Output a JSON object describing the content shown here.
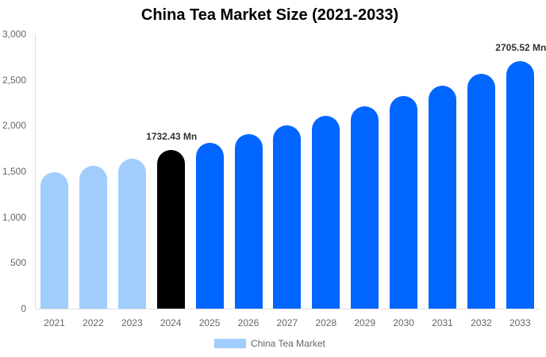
{
  "chart_data": {
    "type": "bar",
    "title": "China Tea Market Size (2021-2033)",
    "xlabel": "",
    "ylabel": "",
    "ylim": [
      0,
      3000
    ],
    "yticks": [
      "0",
      "500",
      "1,000",
      "1,500",
      "2,000",
      "2,500",
      "3,000"
    ],
    "grid": false,
    "legend_position": "bottom",
    "categories": [
      "2021",
      "2022",
      "2023",
      "2024",
      "2025",
      "2026",
      "2027",
      "2028",
      "2029",
      "2030",
      "2031",
      "2032",
      "2033"
    ],
    "series": [
      {
        "name": "China Tea Market",
        "values": [
          1490,
          1560,
          1640,
          1732.43,
          1815,
          1905,
          2000,
          2105,
          2210,
          2320,
          2440,
          2565,
          2705.52
        ]
      }
    ],
    "bar_colors": [
      "#a0cdfc",
      "#a0cdfc",
      "#a0cdfc",
      "#000000",
      "#0066ff",
      "#0066ff",
      "#0066ff",
      "#0066ff",
      "#0066ff",
      "#0066ff",
      "#0066ff",
      "#0066ff",
      "#0066ff"
    ],
    "annotations": [
      {
        "category": "2024",
        "text": "1732.43 Mn"
      },
      {
        "category": "2033",
        "text": "2705.52 Mn"
      }
    ]
  },
  "legend": {
    "label": "China Tea Market",
    "color": "#a0cdfc"
  }
}
